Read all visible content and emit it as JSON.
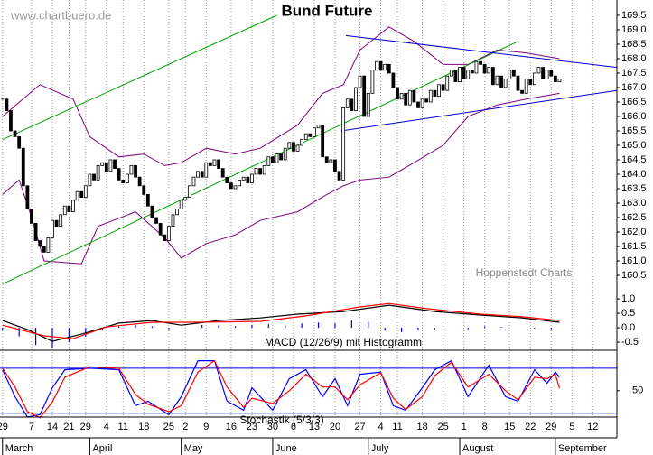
{
  "chart_data": [
    {
      "type": "candlestick",
      "title": "Bund Future",
      "annotations": [
        "www.chartbuero.de",
        "Hoppenstedt Charts"
      ],
      "xlim": [
        -0.6,
        147.8
      ],
      "xticks": [
        {
          "value": 0,
          "label": "29"
        },
        {
          "value": 7,
          "label": "7"
        },
        {
          "value": 12,
          "label": "14"
        },
        {
          "value": 16,
          "label": "21"
        },
        {
          "value": 20,
          "label": "29"
        },
        {
          "value": 25,
          "label": "4"
        },
        {
          "value": 29,
          "label": "11"
        },
        {
          "value": 34,
          "label": "18"
        },
        {
          "value": 40,
          "label": "25"
        },
        {
          "value": 44,
          "label": "2"
        },
        {
          "value": 49,
          "label": "9"
        },
        {
          "value": 55,
          "label": "16"
        },
        {
          "value": 60,
          "label": "23"
        },
        {
          "value": 65,
          "label": "30"
        },
        {
          "value": 70,
          "label": "6"
        },
        {
          "value": 75,
          "label": "13"
        },
        {
          "value": 80,
          "label": "20"
        },
        {
          "value": 86,
          "label": "27"
        },
        {
          "value": 91,
          "label": "4"
        },
        {
          "value": 95,
          "label": "11"
        },
        {
          "value": 101,
          "label": "18"
        },
        {
          "value": 106,
          "label": "25"
        },
        {
          "value": 111,
          "label": "1"
        },
        {
          "value": 116,
          "label": "8"
        },
        {
          "value": 122,
          "label": "15"
        },
        {
          "value": 127,
          "label": "22"
        },
        {
          "value": 132,
          "label": "29"
        },
        {
          "value": 137,
          "label": "5"
        },
        {
          "value": 142,
          "label": "12"
        }
      ],
      "month_ticks": [
        {
          "value": 0,
          "label": "March"
        },
        {
          "value": 21,
          "label": "April"
        },
        {
          "value": 43,
          "label": "May"
        },
        {
          "value": 65,
          "label": "June"
        },
        {
          "value": 88,
          "label": "July"
        },
        {
          "value": 110,
          "label": "August"
        },
        {
          "value": 133,
          "label": "September"
        }
      ],
      "ylim": [
        159.875,
        170.03
      ],
      "yticks": [
        160.5,
        {
          "value": 161,
          "label": "161.0"
        },
        161.5,
        {
          "value": 162,
          "label": "162.0"
        },
        162.5,
        {
          "value": 163,
          "label": "163.0"
        },
        163.5,
        {
          "value": 164,
          "label": "164.0"
        },
        164.5,
        {
          "value": 165,
          "label": "165.0"
        },
        165.5,
        {
          "value": 166,
          "label": "166.0"
        },
        166.5,
        {
          "value": 167,
          "label": "167.0"
        },
        167.5,
        {
          "value": 168,
          "label": "168.0"
        },
        168.5,
        {
          "value": 169,
          "label": "169.0"
        },
        169.5
      ],
      "grid": true,
      "color_up": "#ffffff",
      "color_down": "#000000",
      "x": [
        0,
        1,
        2,
        3,
        4,
        5,
        6,
        7,
        8,
        9,
        10,
        11,
        12,
        13,
        14,
        15,
        16,
        17,
        18,
        19,
        20,
        21,
        22,
        23,
        24,
        25,
        26,
        27,
        28,
        29,
        30,
        31,
        32,
        33,
        34,
        35,
        36,
        37,
        38,
        39,
        40,
        41,
        42,
        43,
        44,
        45,
        46,
        47,
        48,
        49,
        50,
        51,
        52,
        53,
        54,
        55,
        56,
        57,
        58,
        59,
        60,
        61,
        62,
        63,
        64,
        65,
        66,
        67,
        68,
        69,
        70,
        71,
        72,
        73,
        74,
        75,
        76,
        77,
        78,
        79,
        80,
        81,
        82,
        83,
        84,
        85,
        86,
        87,
        88,
        89,
        90,
        91,
        92,
        93,
        94,
        95,
        96,
        97,
        98,
        99,
        100,
        101,
        102,
        103,
        104,
        105,
        106,
        107,
        108,
        109,
        110,
        111,
        112,
        113,
        114,
        115,
        116,
        117,
        118,
        119,
        120,
        121,
        122,
        123,
        124,
        125,
        126,
        127,
        128,
        129,
        130,
        131,
        132,
        133,
        134
      ],
      "values": [
        166.6,
        166.2,
        165.5,
        165.3,
        164.9,
        163.6,
        162.8,
        162.3,
        161.7,
        161.5,
        161.3,
        161.8,
        162.4,
        162.2,
        162.6,
        162.9,
        162.7,
        163.1,
        163.4,
        163.2,
        163.6,
        164.0,
        163.8,
        164.3,
        164.4,
        164.1,
        164.5,
        164.2,
        163.8,
        163.7,
        164.0,
        164.3,
        163.9,
        163.6,
        163.3,
        162.9,
        162.5,
        162.3,
        161.9,
        161.7,
        162.2,
        162.6,
        162.8,
        163.1,
        163.2,
        163.6,
        163.9,
        164.1,
        163.9,
        164.4,
        164.3,
        164.5,
        164.2,
        163.9,
        163.7,
        163.5,
        163.6,
        163.8,
        163.9,
        163.7,
        164.0,
        164.2,
        164.0,
        164.3,
        164.6,
        164.4,
        164.7,
        164.5,
        164.9,
        165.1,
        164.8,
        165.0,
        165.2,
        165.4,
        165.3,
        165.6,
        165.7,
        164.6,
        164.4,
        164.5,
        164.1,
        163.8,
        166.3,
        166.6,
        166.2,
        167.0,
        167.4,
        166.0,
        166.8,
        167.6,
        167.9,
        167.6,
        167.8,
        167.5,
        167.0,
        166.6,
        166.8,
        166.4,
        166.9,
        166.5,
        166.3,
        166.6,
        166.5,
        166.9,
        166.7,
        167.1,
        166.9,
        167.4,
        167.6,
        167.2,
        167.7,
        167.3,
        167.6,
        167.5,
        167.9,
        167.8,
        167.5,
        167.7,
        167.1,
        167.4,
        167.0,
        167.3,
        167.6,
        167.4,
        166.9,
        166.8,
        167.3,
        167.1,
        167.5,
        167.7,
        167.3,
        167.6,
        167.4,
        167.2,
        167.3
      ],
      "lines": [
        {
          "color": "#800080",
          "x": [
            0,
            9,
            17,
            21,
            28,
            34,
            39,
            43,
            49,
            56,
            62,
            71,
            77,
            82,
            86,
            93,
            99,
            106,
            112,
            119,
            126,
            134
          ],
          "values": [
            166.0,
            167.1,
            166.6,
            165.3,
            164.6,
            164.7,
            164.3,
            164.4,
            164.9,
            164.7,
            164.9,
            165.7,
            166.8,
            167.1,
            168.3,
            169.1,
            168.6,
            167.8,
            167.8,
            168.3,
            168.2,
            168.0
          ]
        },
        {
          "color": "#800080",
          "x": [
            0,
            4,
            7,
            10,
            19,
            23,
            32,
            39,
            43,
            49,
            56,
            62,
            71,
            78,
            82,
            86,
            93,
            99,
            106,
            112,
            119,
            126,
            134
          ],
          "values": [
            163.3,
            163.8,
            162.5,
            161.0,
            160.9,
            162.2,
            162.7,
            161.8,
            161.1,
            161.6,
            161.9,
            162.4,
            162.7,
            163.3,
            163.6,
            163.8,
            163.9,
            164.4,
            165.0,
            166.0,
            166.4,
            166.6,
            166.8
          ]
        },
        {
          "color": "#00a000",
          "x": [
            0,
            66
          ],
          "values": [
            165.2,
            169.5
          ]
        },
        {
          "color": "#00a000",
          "x": [
            0,
            124
          ],
          "values": [
            160.2,
            168.6
          ]
        },
        {
          "color": "#0000cc",
          "x": [
            82.6,
            147.8
          ],
          "values": [
            168.8,
            167.7
          ]
        },
        {
          "color": "#0000cc",
          "x": [
            81.5,
            147.8
          ],
          "values": [
            165.5,
            166.9
          ]
        }
      ]
    },
    {
      "type": "line",
      "title": "MACD (12/26/9) mit Histogramm",
      "ylim": [
        -0.78,
        1.19
      ],
      "yticks": [
        {
          "value": 1,
          "label": "1.0"
        },
        0.5,
        {
          "value": 0,
          "label": "0.0"
        },
        -0.5
      ],
      "series": [
        {
          "color": "#000000",
          "x": [
            0,
            6,
            12,
            19,
            28,
            36,
            43,
            52,
            62,
            71,
            82,
            93,
            104,
            115,
            125,
            134
          ],
          "values": [
            0.25,
            -0.06,
            -0.47,
            -0.22,
            0.16,
            0.25,
            0.09,
            0.25,
            0.34,
            0.47,
            0.56,
            0.78,
            0.56,
            0.44,
            0.34,
            0.19
          ]
        },
        {
          "color": "#ff0000",
          "x": [
            0,
            10,
            17,
            25,
            36,
            47,
            62,
            73,
            86,
            93,
            102,
            115,
            125,
            134
          ],
          "values": [
            0.09,
            -0.28,
            -0.38,
            0.03,
            0.19,
            0.19,
            0.22,
            0.41,
            0.72,
            0.84,
            0.66,
            0.47,
            0.38,
            0.25
          ]
        }
      ],
      "histogram": {
        "color": "#0000ff",
        "x": [
          0,
          4,
          8,
          12,
          16,
          20,
          24,
          28,
          32,
          36,
          40,
          44,
          48,
          52,
          56,
          60,
          64,
          68,
          72,
          76,
          80,
          84,
          88,
          92,
          96,
          100,
          104,
          108,
          112,
          116,
          120,
          124,
          128,
          132
        ],
        "values": [
          -0.1,
          -0.3,
          -0.6,
          -0.7,
          -0.5,
          -0.3,
          -0.1,
          0.05,
          0.1,
          0.05,
          -0.05,
          0,
          0.1,
          0.08,
          0.05,
          0.1,
          0.12,
          0.1,
          0.15,
          0.18,
          0.15,
          0.25,
          0.2,
          -0.1,
          -0.15,
          -0.1,
          -0.05,
          0,
          -0.05,
          0.05,
          0.03,
          0,
          -0.03,
          -0.05
        ]
      }
    },
    {
      "type": "line",
      "title": "Stochastik (5/3/3)",
      "ylim": [
        10,
        104
      ],
      "yticks": [
        50
      ],
      "levels": [
        20,
        80
      ],
      "level_color": "#0000cc",
      "series": [
        {
          "color": "#0000ff",
          "x": [
            0,
            3,
            6,
            9,
            12,
            15,
            21,
            28,
            32,
            35,
            40,
            43,
            47,
            51,
            54,
            58,
            60,
            65,
            69,
            73,
            77,
            80,
            83,
            86,
            91,
            94,
            97,
            101,
            104,
            108,
            112,
            117,
            121,
            124,
            128,
            131,
            133,
            134
          ],
          "values": [
            78,
            42,
            15,
            18,
            54,
            78,
            80,
            78,
            30,
            36,
            18,
            42,
            90,
            90,
            36,
            24,
            54,
            24,
            66,
            78,
            42,
            66,
            30,
            72,
            75,
            30,
            24,
            54,
            78,
            90,
            42,
            84,
            42,
            36,
            78,
            60,
            75,
            68
          ]
        },
        {
          "color": "#ff0000",
          "x": [
            0,
            3,
            6,
            9,
            12,
            15,
            21,
            28,
            32,
            35,
            40,
            43,
            47,
            51,
            54,
            58,
            60,
            65,
            69,
            73,
            77,
            80,
            83,
            86,
            91,
            94,
            97,
            101,
            104,
            108,
            112,
            117,
            121,
            124,
            128,
            131,
            133,
            134
          ],
          "values": [
            80,
            55,
            22,
            14,
            35,
            68,
            82,
            80,
            45,
            32,
            22,
            30,
            75,
            90,
            55,
            28,
            40,
            33,
            50,
            72,
            55,
            55,
            38,
            58,
            74,
            40,
            25,
            42,
            70,
            88,
            55,
            72,
            50,
            38,
            68,
            66,
            72,
            53
          ]
        }
      ]
    }
  ]
}
